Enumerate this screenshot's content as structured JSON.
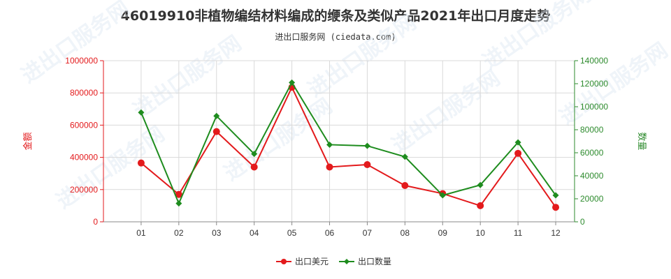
{
  "chart_data": {
    "type": "line",
    "title": "46019910非植物编结材料编成的缏条及类似产品2021年出口月度走势",
    "subtitle": "进出口服务网 (ciedata.com)",
    "categories": [
      "01",
      "02",
      "03",
      "04",
      "05",
      "06",
      "07",
      "08",
      "09",
      "10",
      "11",
      "12"
    ],
    "ylabel_left": "金额",
    "ylabel_right": "数量",
    "ylim_left": [
      0,
      1000000
    ],
    "ylim_right": [
      0,
      140000
    ],
    "yticks_left": [
      "0",
      "200000",
      "400000",
      "600000",
      "800000",
      "1000000"
    ],
    "yticks_right": [
      "0",
      "20000",
      "40000",
      "60000",
      "80000",
      "100000",
      "120000",
      "140000"
    ],
    "grid": true,
    "legend_position": "bottom",
    "series": [
      {
        "name": "出口美元",
        "axis": "left",
        "color": "#e31a1c",
        "values": [
          365000,
          170000,
          560000,
          340000,
          835000,
          340000,
          355000,
          225000,
          175000,
          100000,
          425000,
          90000
        ]
      },
      {
        "name": "出口数量",
        "axis": "right",
        "color": "#1e8c1e",
        "values": [
          95000,
          16000,
          92000,
          59000,
          121000,
          67000,
          66000,
          56500,
          23000,
          32000,
          69000,
          23000
        ]
      }
    ],
    "watermark": "进出口服务网"
  }
}
